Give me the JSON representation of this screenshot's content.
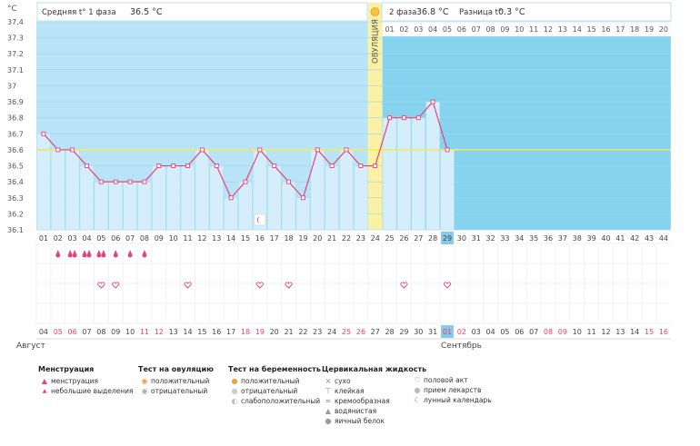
{
  "chart_data": {
    "type": "line",
    "y_unit": "°C",
    "ylim": [
      36.1,
      37.4
    ],
    "y_ticks": [
      "36.1",
      "36.2",
      "36.3",
      "36.4",
      "36.5",
      "36.6",
      "36.7",
      "36.8",
      "36.9",
      "37",
      "37.1",
      "37.2",
      "37.3",
      "37.4"
    ],
    "phase1_label": "Средняя t° 1 фаза",
    "phase1_value": "36.5 °C",
    "phase2_label": "2 фаза",
    "phase2_value": "36.8 °C",
    "diff_label": "Разница t°",
    "diff_value": "0.3 °C",
    "ovulation_label": "ОВУЛЯЦИЯ",
    "ovulation_day": 24,
    "coverline": 36.6,
    "cycle_days": [
      "01",
      "02",
      "03",
      "04",
      "05",
      "06",
      "07",
      "08",
      "09",
      "10",
      "11",
      "12",
      "13",
      "14",
      "15",
      "16",
      "17",
      "18",
      "19",
      "20",
      "21",
      "22",
      "23",
      "24",
      "25",
      "26",
      "27",
      "28",
      "29",
      "30",
      "31",
      "32",
      "33",
      "34",
      "35",
      "36",
      "37",
      "38",
      "39",
      "40",
      "41",
      "42",
      "43",
      "44"
    ],
    "phase2_days": [
      "01",
      "02",
      "03",
      "04",
      "05",
      "06",
      "07",
      "08",
      "09",
      "10",
      "11",
      "12",
      "13",
      "14",
      "15",
      "16",
      "17",
      "18",
      "19",
      "20"
    ],
    "current_day": 29,
    "series": [
      {
        "values": [
          36.7,
          36.6,
          36.6,
          36.5,
          36.4,
          36.4,
          36.4,
          36.4,
          36.5,
          36.5,
          36.5,
          36.6,
          36.5,
          36.3,
          36.4,
          36.6,
          36.5,
          36.4,
          36.3,
          36.6,
          36.5,
          36.6,
          36.5,
          36.5,
          36.8,
          36.8,
          36.8,
          36.9,
          36.6
        ]
      }
    ],
    "menstruation_days": {
      "2": 1,
      "3": 2,
      "4": 2,
      "5": 2,
      "6": 1,
      "7": 1,
      "8": 1
    },
    "intercourse_days": [
      5,
      6,
      11,
      16,
      18,
      26,
      29
    ],
    "moon_day": 16,
    "calendar_dates": [
      "04",
      "05",
      "06",
      "07",
      "08",
      "09",
      "10",
      "11",
      "12",
      "13",
      "14",
      "15",
      "16",
      "17",
      "18",
      "19",
      "20",
      "21",
      "22",
      "23",
      "24",
      "25",
      "26",
      "27",
      "28",
      "29",
      "30",
      "31",
      "01",
      "02",
      "03",
      "04",
      "05",
      "06",
      "07",
      "08",
      "09",
      "10",
      "11",
      "12",
      "13",
      "14",
      "15",
      "16"
    ],
    "weekend_dates_idx": [
      1,
      2,
      7,
      8,
      14,
      15,
      21,
      22,
      28,
      29,
      35,
      36,
      42,
      43
    ],
    "month1": "Август",
    "month2": "Сентябрь",
    "colors": {
      "phase1_bg": "#b9e3f7",
      "phase2_bg": "#86d3f0",
      "ovulation": "#faf1a5",
      "line": "#e8427a",
      "coverline": "#f0ec55",
      "bar": "#d5eefb",
      "weekend": "#e8427a"
    }
  },
  "legend": {
    "menstruation": {
      "title": "Менструация",
      "items": [
        "менструация",
        "небольшие выделения"
      ]
    },
    "ovulation_test": {
      "title": "Тест на овуляцию",
      "items": [
        "положительный",
        "отрицательный"
      ]
    },
    "pregnancy_test": {
      "title": "Тест на беременность",
      "items": [
        "положительный",
        "отрицательный",
        "слабоположительный"
      ]
    },
    "cervical": {
      "title": "Цервикальная жидкость",
      "items": [
        "сухо",
        "клейкая",
        "кремообразная",
        "водянистая",
        "яичный белок"
      ]
    },
    "other": {
      "items": [
        "половой акт",
        "прием лекарств",
        "лунный календарь"
      ]
    }
  }
}
